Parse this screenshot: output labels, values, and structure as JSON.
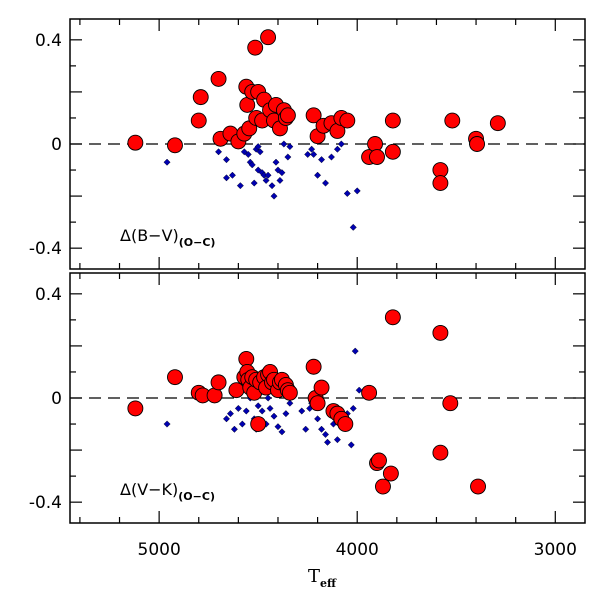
{
  "chart_data": {
    "type": "scatter",
    "xlabel": "T",
    "xlabel_sub": "eff",
    "xlim": [
      5450,
      2850
    ],
    "x_ticks": [
      5000,
      4000,
      3000
    ],
    "x_tick_labels": [
      "5000",
      "4000",
      "3000"
    ],
    "colors": {
      "large": "#ff0000",
      "small": "#0000b0"
    },
    "panels": [
      {
        "label": "Δ(B−V)",
        "label_sub": "(O−C)",
        "ylim": [
          -0.48,
          0.48
        ],
        "y_ticks": [
          0.4,
          0,
          -0.4
        ],
        "y_tick_labels": [
          "0.4",
          "0",
          "-0.4"
        ],
        "series": [
          {
            "marker": "large-circle",
            "points": [
              [
                5120,
                0.005
              ],
              [
                4920,
                -0.005
              ],
              [
                4800,
                0.09
              ],
              [
                4790,
                0.18
              ],
              [
                4700,
                0.25
              ],
              [
                4690,
                0.02
              ],
              [
                4640,
                0.04
              ],
              [
                4600,
                0.01
              ],
              [
                4570,
                0.04
              ],
              [
                4560,
                0.22
              ],
              [
                4555,
                0.15
              ],
              [
                4545,
                0.06
              ],
              [
                4530,
                0.2
              ],
              [
                4515,
                0.37
              ],
              [
                4510,
                0.1
              ],
              [
                4500,
                0.2
              ],
              [
                4480,
                0.09
              ],
              [
                4470,
                0.17
              ],
              [
                4450,
                0.41
              ],
              [
                4440,
                0.13
              ],
              [
                4420,
                0.09
              ],
              [
                4410,
                0.15
              ],
              [
                4390,
                0.06
              ],
              [
                4370,
                0.13
              ],
              [
                4360,
                0.1
              ],
              [
                4350,
                0.11
              ],
              [
                4220,
                0.11
              ],
              [
                4200,
                0.03
              ],
              [
                4170,
                0.07
              ],
              [
                4130,
                0.08
              ],
              [
                4100,
                0.05
              ],
              [
                4080,
                0.1
              ],
              [
                4050,
                0.09
              ],
              [
                3940,
                -0.05
              ],
              [
                3910,
                0.0
              ],
              [
                3900,
                -0.05
              ],
              [
                3820,
                0.09
              ],
              [
                3820,
                -0.03
              ],
              [
                3580,
                -0.1
              ],
              [
                3580,
                -0.15
              ],
              [
                3520,
                0.09
              ],
              [
                3400,
                0.02
              ],
              [
                3395,
                0.0
              ],
              [
                3290,
                0.08
              ]
            ]
          },
          {
            "marker": "small-diamond",
            "points": [
              [
                4960,
                -0.07
              ],
              [
                4700,
                -0.03
              ],
              [
                4660,
                -0.06
              ],
              [
                4660,
                -0.13
              ],
              [
                4630,
                -0.12
              ],
              [
                4590,
                -0.16
              ],
              [
                4570,
                -0.03
              ],
              [
                4550,
                -0.04
              ],
              [
                4540,
                -0.07
              ],
              [
                4530,
                -0.08
              ],
              [
                4520,
                -0.15
              ],
              [
                4510,
                -0.02
              ],
              [
                4500,
                -0.01
              ],
              [
                4500,
                -0.1
              ],
              [
                4490,
                -0.03
              ],
              [
                4480,
                -0.11
              ],
              [
                4470,
                -0.12
              ],
              [
                4460,
                -0.14
              ],
              [
                4450,
                -0.12
              ],
              [
                4430,
                -0.16
              ],
              [
                4420,
                -0.2
              ],
              [
                4410,
                -0.07
              ],
              [
                4400,
                -0.1
              ],
              [
                4390,
                -0.14
              ],
              [
                4380,
                -0.11
              ],
              [
                4370,
                0.0
              ],
              [
                4350,
                -0.05
              ],
              [
                4340,
                -0.01
              ],
              [
                4250,
                -0.04
              ],
              [
                4230,
                -0.02
              ],
              [
                4220,
                -0.04
              ],
              [
                4200,
                -0.12
              ],
              [
                4180,
                -0.06
              ],
              [
                4160,
                -0.15
              ],
              [
                4130,
                -0.05
              ],
              [
                4110,
                0.05
              ],
              [
                4100,
                -0.02
              ],
              [
                4080,
                0.0
              ],
              [
                4050,
                -0.19
              ],
              [
                4020,
                -0.32
              ],
              [
                4000,
                -0.18
              ]
            ]
          }
        ]
      },
      {
        "label": "Δ(V−K)",
        "label_sub": "(O−C)",
        "ylim": [
          -0.48,
          0.48
        ],
        "y_ticks": [
          0.4,
          0,
          -0.4
        ],
        "y_tick_labels": [
          "0.4",
          "0",
          "-0.4"
        ],
        "series": [
          {
            "marker": "large-circle",
            "points": [
              [
                5120,
                -0.04
              ],
              [
                4920,
                0.08
              ],
              [
                4800,
                0.02
              ],
              [
                4780,
                0.01
              ],
              [
                4720,
                0.01
              ],
              [
                4700,
                0.06
              ],
              [
                4610,
                0.03
              ],
              [
                4570,
                0.08
              ],
              [
                4560,
                0.15
              ],
              [
                4555,
                0.1
              ],
              [
                4550,
                0.07
              ],
              [
                4540,
                0.04
              ],
              [
                4530,
                0.08
              ],
              [
                4520,
                0.02
              ],
              [
                4510,
                0.07
              ],
              [
                4500,
                -0.1
              ],
              [
                4490,
                0.06
              ],
              [
                4470,
                0.08
              ],
              [
                4460,
                0.04
              ],
              [
                4450,
                0.09
              ],
              [
                4440,
                0.1
              ],
              [
                4430,
                0.06
              ],
              [
                4420,
                0.07
              ],
              [
                4400,
                0.03
              ],
              [
                4390,
                0.06
              ],
              [
                4380,
                0.07
              ],
              [
                4360,
                0.05
              ],
              [
                4350,
                0.03
              ],
              [
                4340,
                0.02
              ],
              [
                4220,
                0.12
              ],
              [
                4210,
                0.0
              ],
              [
                4200,
                -0.02
              ],
              [
                4180,
                0.04
              ],
              [
                4120,
                -0.05
              ],
              [
                4100,
                -0.06
              ],
              [
                4080,
                -0.08
              ],
              [
                4060,
                -0.1
              ],
              [
                3940,
                0.02
              ],
              [
                3900,
                -0.25
              ],
              [
                3890,
                -0.24
              ],
              [
                3870,
                -0.34
              ],
              [
                3830,
                -0.29
              ],
              [
                3820,
                0.31
              ],
              [
                3580,
                0.25
              ],
              [
                3580,
                -0.21
              ],
              [
                3530,
                -0.02
              ],
              [
                3390,
                -0.34
              ]
            ]
          },
          {
            "marker": "small-diamond",
            "points": [
              [
                4960,
                -0.1
              ],
              [
                4700,
                0.0
              ],
              [
                4660,
                -0.08
              ],
              [
                4640,
                -0.06
              ],
              [
                4620,
                -0.12
              ],
              [
                4600,
                -0.04
              ],
              [
                4580,
                -0.1
              ],
              [
                4560,
                -0.05
              ],
              [
                4540,
                0.0
              ],
              [
                4520,
                -0.08
              ],
              [
                4510,
                -0.12
              ],
              [
                4500,
                -0.03
              ],
              [
                4480,
                -0.05
              ],
              [
                4460,
                -0.1
              ],
              [
                4450,
                0.0
              ],
              [
                4440,
                -0.04
              ],
              [
                4420,
                -0.07
              ],
              [
                4400,
                -0.11
              ],
              [
                4380,
                -0.13
              ],
              [
                4360,
                -0.06
              ],
              [
                4340,
                -0.02
              ],
              [
                4280,
                -0.05
              ],
              [
                4260,
                -0.12
              ],
              [
                4240,
                -0.04
              ],
              [
                4230,
                -0.02
              ],
              [
                4200,
                -0.08
              ],
              [
                4180,
                -0.12
              ],
              [
                4160,
                -0.14
              ],
              [
                4150,
                -0.17
              ],
              [
                4140,
                -0.05
              ],
              [
                4120,
                -0.1
              ],
              [
                4100,
                -0.16
              ],
              [
                4080,
                -0.07
              ],
              [
                4050,
                -0.06
              ],
              [
                4030,
                -0.18
              ],
              [
                4020,
                -0.04
              ],
              [
                3990,
                0.03
              ],
              [
                4010,
                0.18
              ]
            ]
          }
        ]
      }
    ]
  }
}
